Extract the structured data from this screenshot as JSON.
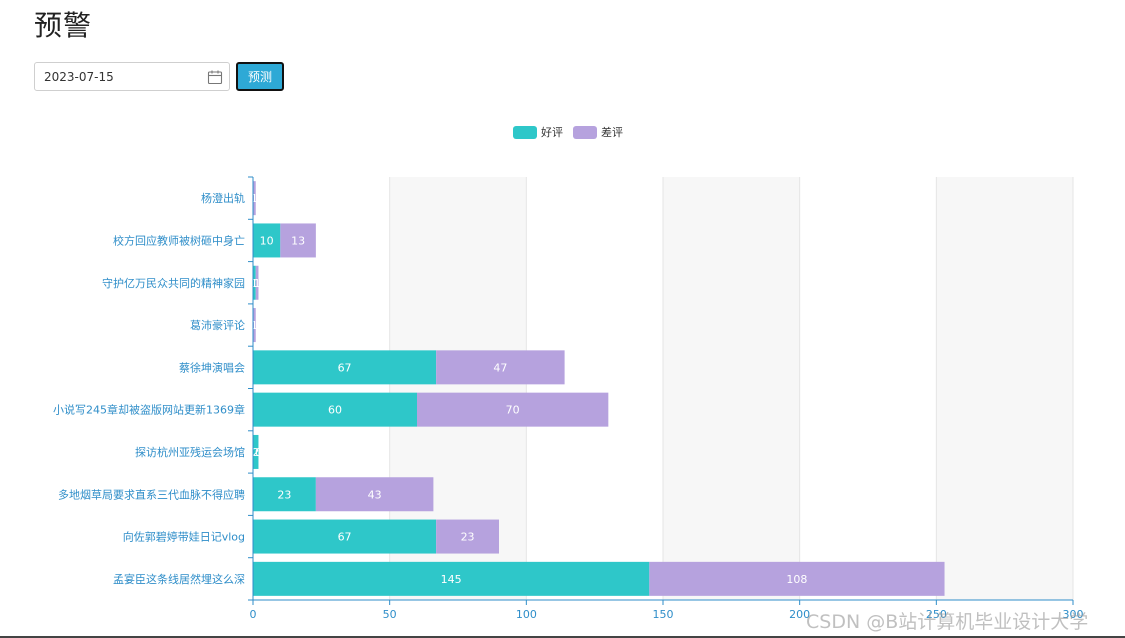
{
  "page": {
    "title": "预警"
  },
  "controls": {
    "date_value": "2023-07-15",
    "predict_label": "预测"
  },
  "watermark": "CSDN @B站计算机毕业设计大学",
  "colors": {
    "good": "#2ec7c9",
    "bad": "#b6a2de",
    "axis": "#2f8ec9",
    "button": "#2ea9d6"
  },
  "icons": {
    "calendar": "calendar-icon"
  },
  "chart_data": {
    "type": "bar",
    "orientation": "horizontal",
    "stacked": true,
    "categories": [
      "杨澄出轨",
      "校方回应教师被树砸中身亡",
      "守护亿万民众共同的精神家园",
      "葛沛豪评论",
      "蔡徐坤演唱会",
      "小说写245章却被盗版网站更新1369章",
      "探访杭州亚残运会场馆",
      "多地烟草局要求直系三代血脉不得应聘",
      "向佐郭碧婷带娃日记vlog",
      "孟宴臣这条线居然埋这么深"
    ],
    "series": [
      {
        "name": "好评",
        "values": [
          0,
          10,
          1,
          0,
          67,
          60,
          2,
          23,
          67,
          145
        ]
      },
      {
        "name": "差评",
        "values": [
          1,
          13,
          1,
          1,
          47,
          70,
          0,
          43,
          23,
          108
        ]
      }
    ],
    "xlim": [
      0,
      300
    ],
    "xticks": [
      "0",
      "50",
      "100",
      "150",
      "200",
      "250",
      "300"
    ],
    "legend_position": "top-center",
    "split_area": true
  }
}
